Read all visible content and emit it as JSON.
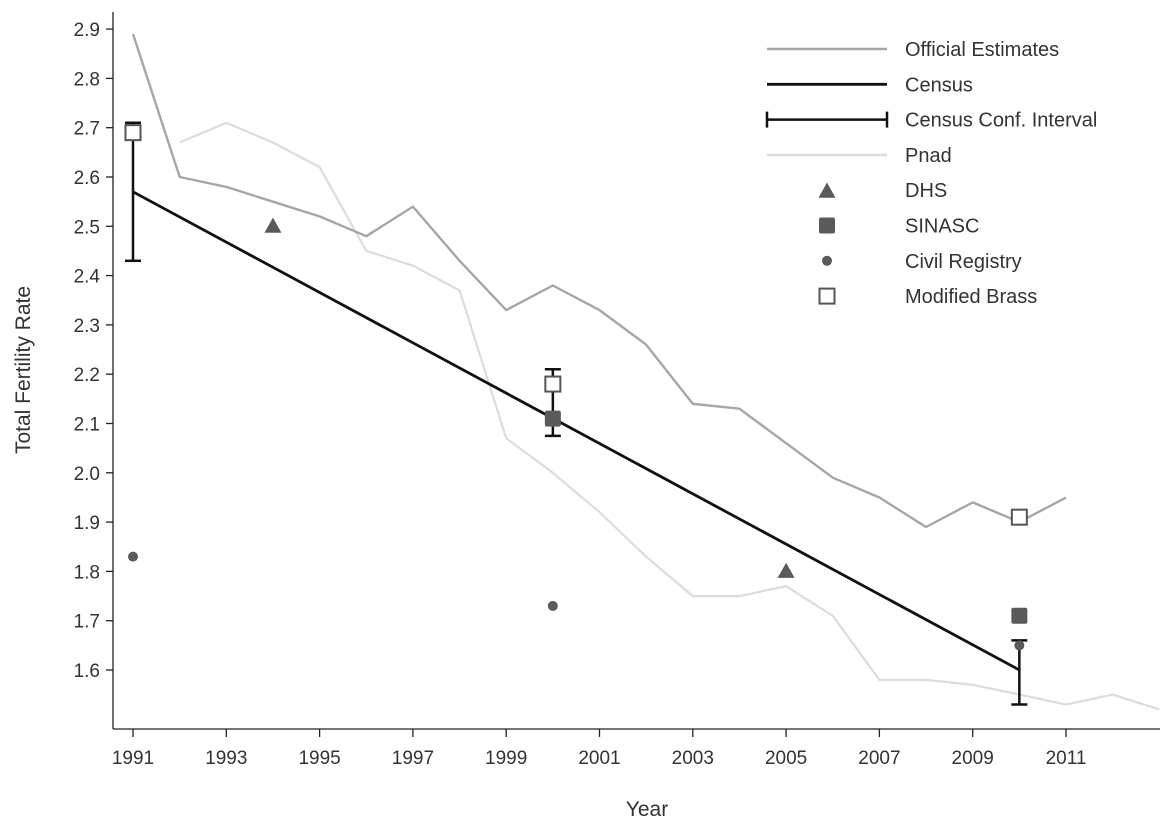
{
  "chart_data": {
    "type": "line",
    "title": "",
    "xlabel": "Year",
    "ylabel": "Total Fertility Rate",
    "xlim": [
      1991,
      2013
    ],
    "ylim": [
      1.5,
      2.9
    ],
    "x_ticks": [
      1991,
      1993,
      1995,
      1997,
      1999,
      2001,
      2003,
      2005,
      2007,
      2009,
      2011
    ],
    "y_ticks": [
      1.6,
      1.7,
      1.8,
      1.9,
      2.0,
      2.1,
      2.2,
      2.3,
      2.4,
      2.5,
      2.6,
      2.7,
      2.8,
      2.9
    ],
    "grid": false,
    "legend_position": "top-right",
    "legend": [
      {
        "label": "Official Estimates",
        "marker": "line",
        "color": "#a6a6a6"
      },
      {
        "label": "Census",
        "marker": "line",
        "color": "#111111"
      },
      {
        "label": "Census Conf. Interval",
        "marker": "errorbar",
        "color": "#111111"
      },
      {
        "label": "Pnad",
        "marker": "line",
        "color": "#dcdcdc"
      },
      {
        "label": "DHS",
        "marker": "triangle",
        "color": "#5a5a5a"
      },
      {
        "label": "SINASC",
        "marker": "filled-square",
        "color": "#5a5a5a"
      },
      {
        "label": "Civil Registry",
        "marker": "circle",
        "color": "#5a5a5a"
      },
      {
        "label": "Modified Brass",
        "marker": "open-square",
        "color": "#555555"
      }
    ],
    "series": [
      {
        "name": "Official Estimates",
        "kind": "line",
        "color": "#a6a6a6",
        "points": [
          [
            1991,
            2.89
          ],
          [
            1992,
            2.6
          ],
          [
            1993,
            2.58
          ],
          [
            1994,
            2.55
          ],
          [
            1995,
            2.52
          ],
          [
            1996,
            2.48
          ],
          [
            1997,
            2.54
          ],
          [
            1998,
            2.43
          ],
          [
            1999,
            2.33
          ],
          [
            2000,
            2.38
          ],
          [
            2001,
            2.33
          ],
          [
            2002,
            2.26
          ],
          [
            2003,
            2.14
          ],
          [
            2004,
            2.13
          ],
          [
            2005,
            2.06
          ],
          [
            2006,
            1.99
          ],
          [
            2007,
            1.95
          ],
          [
            2008,
            1.89
          ],
          [
            2009,
            1.94
          ],
          [
            2010,
            1.9
          ],
          [
            2011,
            1.95
          ]
        ]
      },
      {
        "name": "Pnad",
        "kind": "line",
        "color": "#dcdcdc",
        "points": [
          [
            1992,
            2.67
          ],
          [
            1993,
            2.71
          ],
          [
            1994,
            2.67
          ],
          [
            1995,
            2.62
          ],
          [
            1996,
            2.45
          ],
          [
            1997,
            2.42
          ],
          [
            1998,
            2.37
          ],
          [
            1999,
            2.07
          ],
          [
            2000,
            2.0
          ],
          [
            2001,
            1.92
          ],
          [
            2002,
            1.83
          ],
          [
            2003,
            1.75
          ],
          [
            2004,
            1.75
          ],
          [
            2005,
            1.77
          ],
          [
            2006,
            1.71
          ],
          [
            2007,
            1.58
          ],
          [
            2008,
            1.58
          ],
          [
            2009,
            1.57
          ],
          [
            2010,
            1.55
          ],
          [
            2011,
            1.53
          ],
          [
            2012,
            1.55
          ],
          [
            2013,
            1.52
          ]
        ]
      },
      {
        "name": "Census",
        "kind": "line",
        "color": "#111111",
        "points": [
          [
            1991,
            2.57
          ],
          [
            2010,
            1.6
          ]
        ]
      },
      {
        "name": "Census Conf. Interval",
        "kind": "errorbar",
        "color": "#111111",
        "bars": [
          {
            "x": 1991,
            "low": 2.43,
            "high": 2.71
          },
          {
            "x": 2000,
            "low": 2.075,
            "high": 2.21
          },
          {
            "x": 2010,
            "low": 1.53,
            "high": 1.66
          }
        ]
      },
      {
        "name": "DHS",
        "kind": "triangle",
        "color": "#5a5a5a",
        "points": [
          [
            1994,
            2.5
          ],
          [
            2005,
            1.8
          ]
        ]
      },
      {
        "name": "SINASC",
        "kind": "filled-square",
        "color": "#5a5a5a",
        "points": [
          [
            2000,
            2.11
          ],
          [
            2010,
            1.71
          ]
        ]
      },
      {
        "name": "Civil Registry",
        "kind": "circle",
        "color": "#5a5a5a",
        "points": [
          [
            1991,
            1.83
          ],
          [
            2000,
            1.73
          ],
          [
            2010,
            1.65
          ]
        ]
      },
      {
        "name": "Modified Brass",
        "kind": "open-square",
        "color": "#555555",
        "points": [
          [
            1991,
            2.69
          ],
          [
            2000,
            2.18
          ],
          [
            2010,
            1.91
          ]
        ]
      }
    ]
  }
}
